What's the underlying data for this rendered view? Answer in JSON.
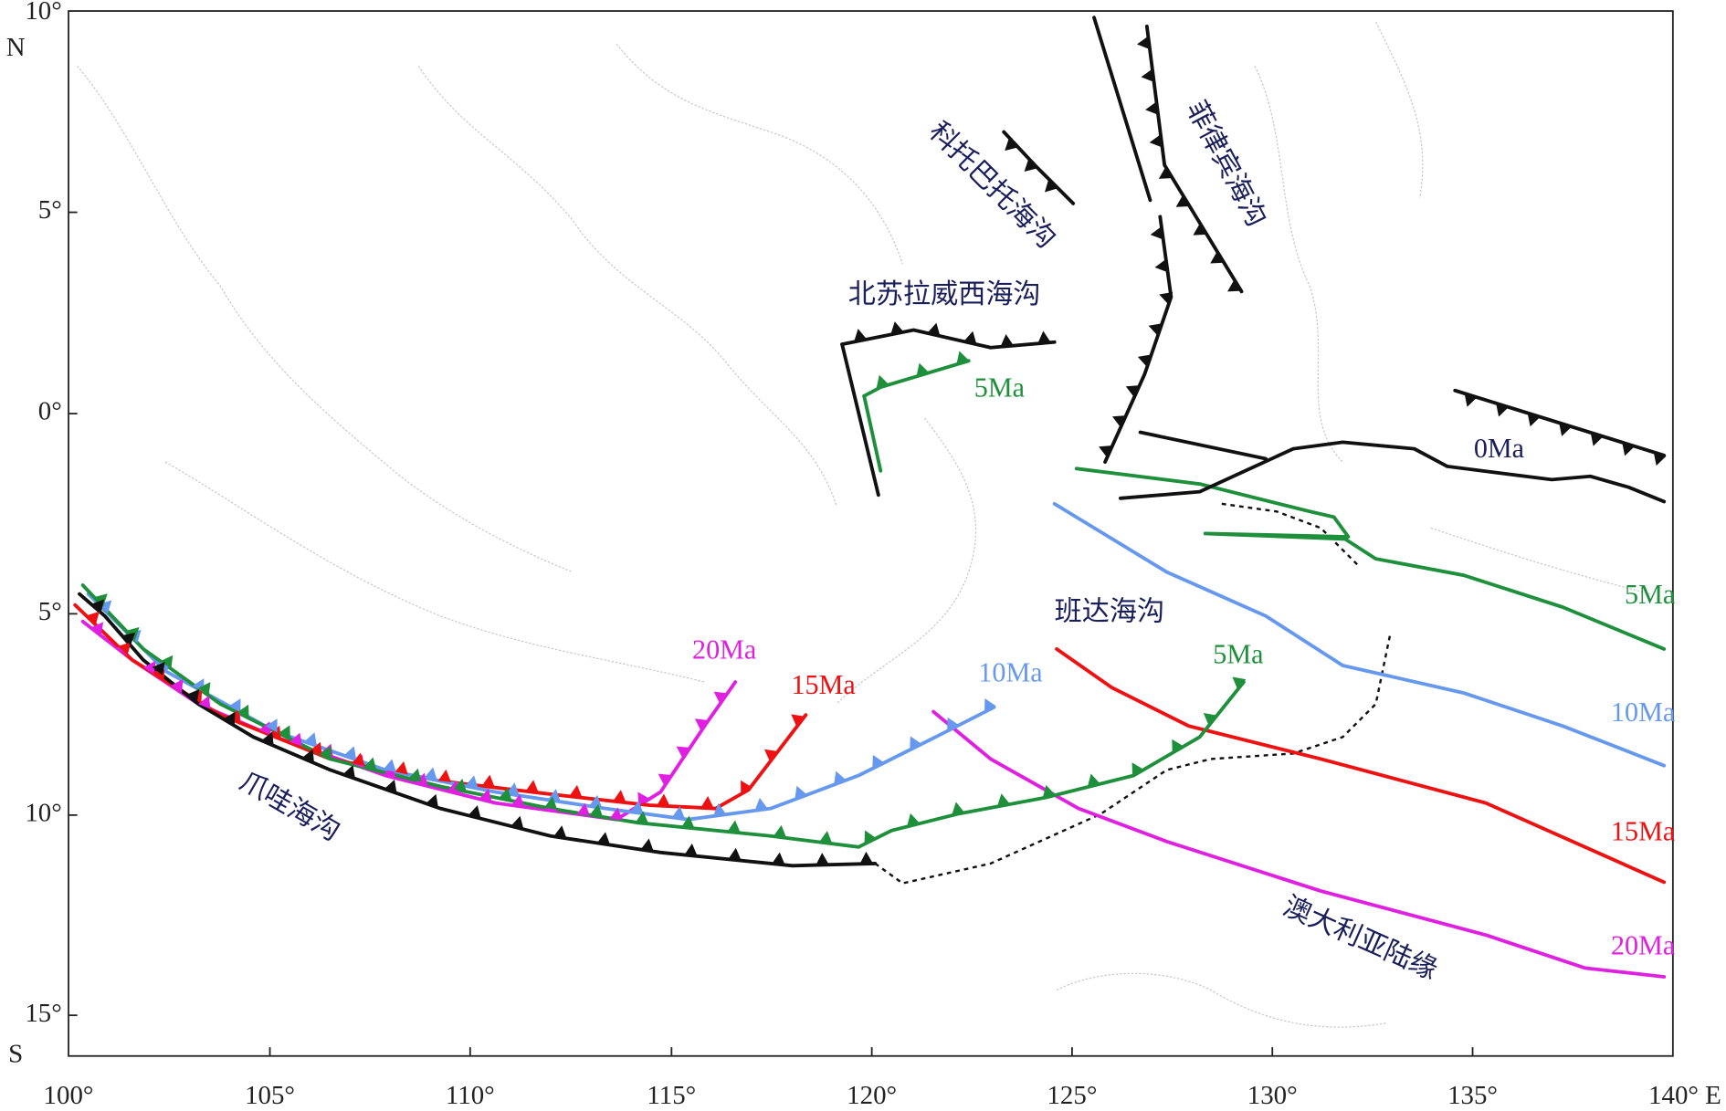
{
  "x_axis": {
    "labels": [
      "100°",
      "105°",
      "110°",
      "115°",
      "120°",
      "125°",
      "130°",
      "135°",
      "140° E"
    ]
  },
  "y_axis": {
    "labels": [
      "10°",
      "N",
      "5°",
      "0°",
      "5°",
      "10°",
      "15°",
      "S"
    ]
  },
  "map_labels": {
    "cotabato_trench": "科托巴托海沟",
    "philippine_trench": "菲律宾海沟",
    "north_sulawesi_trench": "北苏拉威西海沟",
    "banda_trench": "班达海沟",
    "java_trench": "爪哇海沟",
    "australian_margin": "澳大利亚陆缘"
  },
  "age_labels": {
    "sulawesi_5ma": "5Ma",
    "east_0ma": "0Ma",
    "east_5ma": "5Ma",
    "banda_5ma": "5Ma",
    "mid_10ma": "10Ma",
    "east_10ma": "10Ma",
    "mid_15ma": "15Ma",
    "east_15ma": "15Ma",
    "mid_20ma": "20Ma",
    "east_20ma": "20Ma"
  }
}
